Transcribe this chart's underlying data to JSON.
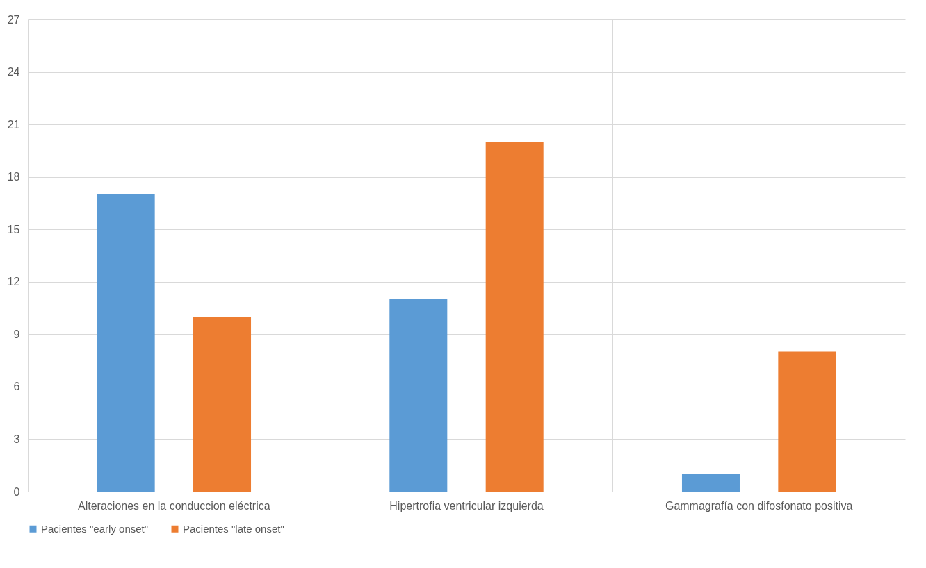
{
  "chart_data": {
    "type": "bar",
    "categories": [
      "Alteraciones en la conduccion eléctrica",
      "Hipertrofia ventricular izquierda",
      "Gammagrafía con difosfonato positiva"
    ],
    "series": [
      {
        "name": "Pacientes \"early onset\"",
        "color": "#5b9bd5",
        "values": [
          17,
          11,
          1
        ]
      },
      {
        "name": "Pacientes \"late onset\"",
        "color": "#ed7d31",
        "values": [
          10,
          20,
          8
        ]
      }
    ],
    "ylim": [
      0,
      27
    ],
    "yticks": [
      0,
      3,
      6,
      9,
      12,
      15,
      18,
      21,
      24,
      27
    ],
    "grid": true,
    "legend": "bottom"
  }
}
